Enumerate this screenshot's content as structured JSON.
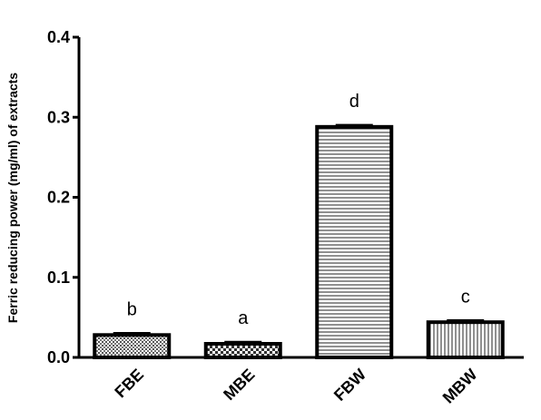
{
  "chart_data": {
    "type": "bar",
    "title": "",
    "xlabel": "",
    "ylabel": "Ferric reducing power (mg/ml) of extracts",
    "ylim": [
      0,
      0.4
    ],
    "yticks": [
      "0.0",
      "0.1",
      "0.2",
      "0.3",
      "0.4"
    ],
    "categories": [
      "FBE",
      "MBE",
      "FBW",
      "MBW"
    ],
    "values": [
      0.028,
      0.017,
      0.288,
      0.044
    ],
    "errors": [
      0.002,
      0.002,
      0.002,
      0.002
    ],
    "significance": [
      "b",
      "a",
      "d",
      "c"
    ],
    "patterns": [
      "crosshatch-dense",
      "checker",
      "horizontal-lines",
      "vertical-lines"
    ],
    "grid": false
  }
}
